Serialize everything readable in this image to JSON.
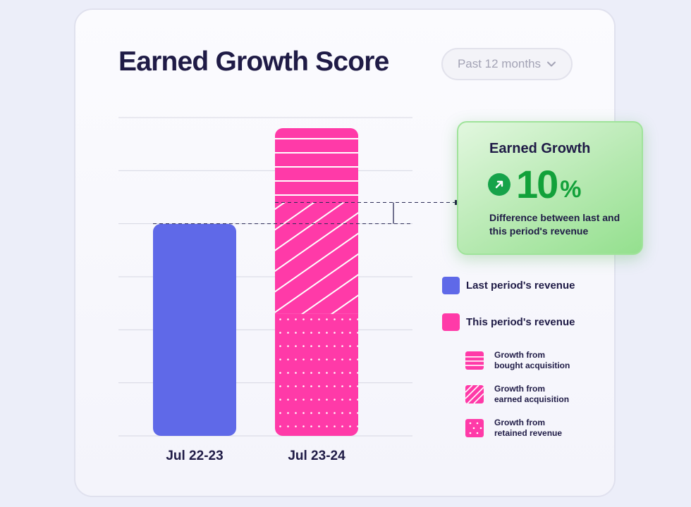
{
  "title": "Earned Growth Score",
  "filter": {
    "label": "Past 12 months"
  },
  "colors": {
    "last": "#5f69e8",
    "this": "#ff3aa8",
    "green": "#12a13a"
  },
  "growth_card": {
    "title": "Earned Growth",
    "value": "10",
    "unit": "%",
    "description": "Difference between last and this period's revenue",
    "icon": "arrow-up-right-icon"
  },
  "legend": {
    "last": "Last period's revenue",
    "this": "This period's revenue",
    "bought_1": "Growth from",
    "bought_2": "bought acquisition",
    "earned_1": "Growth from",
    "earned_2": "earned acquisition",
    "retained_1": "Growth from",
    "retained_2": "retained revenue"
  },
  "chart_data": {
    "type": "bar",
    "categories": [
      "Jul 22-23",
      "Jul 23-24"
    ],
    "ylim": [
      0,
      6
    ],
    "grid": true,
    "series": [
      {
        "name": "Last period's revenue",
        "values": [
          4,
          0
        ]
      },
      {
        "name": "Growth from retained revenue",
        "values": [
          0,
          2.3
        ]
      },
      {
        "name": "Growth from earned acquisition",
        "values": [
          0,
          2.1
        ]
      },
      {
        "name": "Growth from bought acquisition",
        "values": [
          0,
          1.45
        ]
      }
    ],
    "reference_line": 4,
    "bracket_y": 4.4
  }
}
